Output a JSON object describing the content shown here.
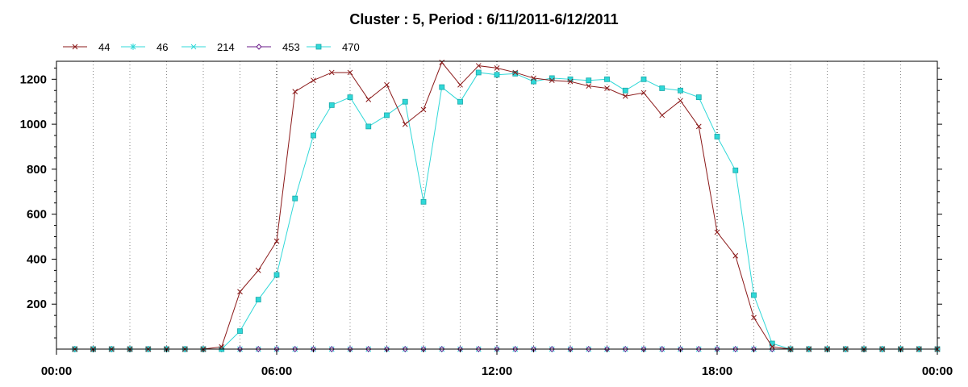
{
  "chart_data": {
    "type": "line",
    "title": "Cluster : 5, Period : 6/11/2011-6/12/2011",
    "xlabel": "",
    "ylabel": "",
    "x_unit": "hours",
    "xlim": [
      0,
      24
    ],
    "ylim": [
      0,
      1280
    ],
    "x_ticks": [
      0,
      6,
      12,
      18,
      24
    ],
    "x_tick_labels": [
      "00:00",
      "06:00",
      "12:00",
      "18:00",
      "00:00"
    ],
    "y_ticks": [
      200,
      400,
      600,
      800,
      1000,
      1200
    ],
    "y_tick_labels": [
      "200",
      "400",
      "600",
      "800",
      "1000",
      "1200"
    ],
    "grid": "vertical dotted",
    "legend_position": "top-left",
    "series": [
      {
        "name": "44",
        "color": "#8b1a1a",
        "marker": "x",
        "x": [
          0.5,
          1,
          1.5,
          2,
          2.5,
          3,
          3.5,
          4,
          4.5,
          5,
          5.5,
          6,
          6.5,
          7,
          7.5,
          8,
          8.5,
          9,
          9.5,
          10,
          10.5,
          11,
          11.5,
          12,
          12.5,
          13,
          13.5,
          14,
          14.5,
          15,
          15.5,
          16,
          16.5,
          17,
          17.5,
          18,
          18.5,
          19,
          19.5,
          20,
          20.5,
          21,
          21.5,
          22,
          22.5,
          23,
          23.5,
          24
        ],
        "values": [
          0,
          0,
          0,
          0,
          0,
          0,
          0,
          0,
          10,
          255,
          350,
          480,
          1145,
          1195,
          1230,
          1230,
          1110,
          1175,
          1000,
          1065,
          1275,
          1175,
          1260,
          1250,
          1230,
          1205,
          1195,
          1190,
          1170,
          1160,
          1125,
          1140,
          1040,
          1105,
          990,
          520,
          415,
          140,
          10,
          0,
          0,
          0,
          0,
          0,
          0,
          0,
          0,
          0
        ]
      },
      {
        "name": "46",
        "color": "#30d8d8",
        "marker": "star",
        "x": [
          0.5,
          1,
          1.5,
          2,
          2.5,
          3,
          3.5,
          4,
          4.5,
          5,
          5.5,
          6,
          6.5,
          7,
          7.5,
          8,
          8.5,
          9,
          9.5,
          10,
          10.5,
          11,
          11.5,
          12,
          12.5,
          13,
          13.5,
          14,
          14.5,
          15,
          15.5,
          16,
          16.5,
          17,
          17.5,
          18,
          18.5,
          19,
          19.5,
          20,
          20.5,
          21,
          21.5,
          22,
          22.5,
          23,
          23.5,
          24
        ],
        "values": [
          0,
          0,
          0,
          0,
          0,
          0,
          0,
          0,
          0,
          0,
          0,
          0,
          0,
          0,
          0,
          0,
          0,
          0,
          0,
          0,
          0,
          0,
          0,
          0,
          0,
          0,
          0,
          0,
          0,
          0,
          0,
          0,
          0,
          0,
          0,
          0,
          0,
          0,
          0,
          0,
          0,
          0,
          0,
          0,
          0,
          0,
          0,
          0
        ]
      },
      {
        "name": "214",
        "color": "#30d8d8",
        "marker": "x",
        "x": [
          0.5,
          1,
          1.5,
          2,
          2.5,
          3,
          3.5,
          4,
          4.5,
          5,
          5.5,
          6,
          6.5,
          7,
          7.5,
          8,
          8.5,
          9,
          9.5,
          10,
          10.5,
          11,
          11.5,
          12,
          12.5,
          13,
          13.5,
          14,
          14.5,
          15,
          15.5,
          16,
          16.5,
          17,
          17.5,
          18,
          18.5,
          19,
          19.5,
          20,
          20.5,
          21,
          21.5,
          22,
          22.5,
          23,
          23.5,
          24
        ],
        "values": [
          0,
          0,
          0,
          0,
          0,
          0,
          0,
          0,
          0,
          0,
          0,
          0,
          0,
          0,
          0,
          0,
          0,
          0,
          0,
          0,
          0,
          0,
          0,
          0,
          0,
          0,
          0,
          0,
          0,
          0,
          0,
          0,
          0,
          0,
          0,
          0,
          0,
          0,
          0,
          0,
          0,
          0,
          0,
          0,
          0,
          0,
          0,
          0
        ]
      },
      {
        "name": "453",
        "color": "#6a1b8a",
        "marker": "diamond",
        "x": [
          0.5,
          1,
          1.5,
          2,
          2.5,
          3,
          3.5,
          4,
          4.5,
          5,
          5.5,
          6,
          6.5,
          7,
          7.5,
          8,
          8.5,
          9,
          9.5,
          10,
          10.5,
          11,
          11.5,
          12,
          12.5,
          13,
          13.5,
          14,
          14.5,
          15,
          15.5,
          16,
          16.5,
          17,
          17.5,
          18,
          18.5,
          19,
          19.5,
          20,
          20.5,
          21,
          21.5,
          22,
          22.5,
          23,
          23.5,
          24
        ],
        "values": [
          0,
          0,
          0,
          0,
          0,
          0,
          0,
          0,
          0,
          0,
          0,
          0,
          0,
          0,
          0,
          0,
          0,
          0,
          0,
          0,
          0,
          0,
          0,
          0,
          0,
          0,
          0,
          0,
          0,
          0,
          0,
          0,
          0,
          0,
          0,
          0,
          0,
          0,
          0,
          0,
          0,
          0,
          0,
          0,
          0,
          0,
          0,
          0
        ]
      },
      {
        "name": "470",
        "color": "#30d8d8",
        "marker": "square",
        "x": [
          0.5,
          1,
          1.5,
          2,
          2.5,
          3,
          3.5,
          4,
          4.5,
          5,
          5.5,
          6,
          6.5,
          7,
          7.5,
          8,
          8.5,
          9,
          9.5,
          10,
          10.5,
          11,
          11.5,
          12,
          12.5,
          13,
          13.5,
          14,
          14.5,
          15,
          15.5,
          16,
          16.5,
          17,
          17.5,
          18,
          18.5,
          19,
          19.5,
          20,
          20.5,
          21,
          21.5,
          22,
          22.5,
          23,
          23.5,
          24
        ],
        "values": [
          0,
          0,
          0,
          0,
          0,
          0,
          0,
          0,
          0,
          80,
          220,
          330,
          670,
          950,
          1085,
          1120,
          990,
          1040,
          1100,
          655,
          1165,
          1100,
          1230,
          1220,
          1225,
          1190,
          1205,
          1200,
          1195,
          1200,
          1150,
          1200,
          1160,
          1150,
          1120,
          945,
          795,
          240,
          25,
          0,
          0,
          0,
          0,
          0,
          0,
          0,
          0,
          0
        ]
      }
    ]
  }
}
